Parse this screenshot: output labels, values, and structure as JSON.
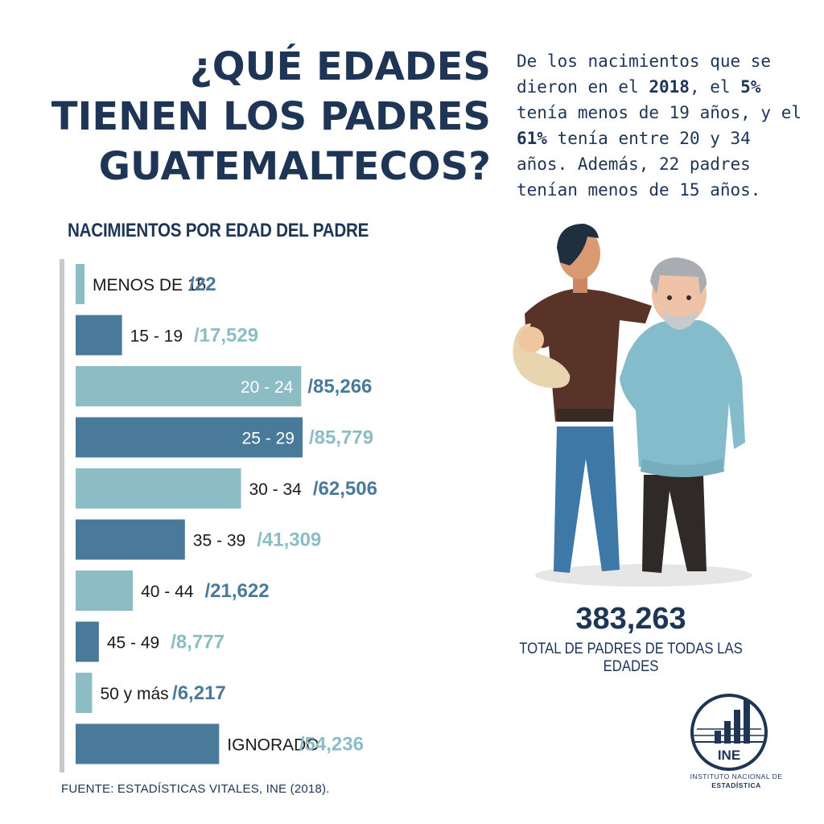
{
  "title": {
    "line1": "¿QUÉ EDADES",
    "line2": "TIENEN LOS PADRES",
    "line3": "GUATEMALTECOS?"
  },
  "intro": {
    "p1": "De los nacimientos que se dieron en el ",
    "year": "2018",
    "p2": ", el ",
    "pct1": "5%",
    "p3": " tenía menos de 19 años, y el ",
    "pct2": "61%",
    "p4": " tenía entre 20 y 34 años.  Además, 22 padres tenían menos de 15 años."
  },
  "chart_data": {
    "type": "bar",
    "orientation": "horizontal",
    "title": "NACIMIENTOS POR EDAD DEL PADRE",
    "categories": [
      "MENOS DE 15",
      "15 - 19",
      "20 - 24",
      "25 - 29",
      "30 - 34",
      "35 - 39",
      "40 - 44",
      "45 - 49",
      "50 y más",
      "IGNORADO"
    ],
    "values": [
      22,
      17529,
      85266,
      85779,
      62506,
      41309,
      21622,
      8777,
      6217,
      54236
    ],
    "value_labels": [
      "/22",
      "/17,529",
      "/85,266",
      "/85,779",
      "/62,506",
      "/41,309",
      "/21,622",
      "/8,777",
      "/6,217",
      "/54,236"
    ],
    "label_inside": [
      false,
      false,
      true,
      true,
      false,
      false,
      false,
      false,
      false,
      false
    ],
    "xlim": [
      0,
      85779
    ],
    "grid": false,
    "legend": "none"
  },
  "colors": {
    "dark_blue": "#4a7a9a",
    "light_blue": "#8cbcc4",
    "navy_text": "#1e3556",
    "axis": "#c8c8c8"
  },
  "total": {
    "value": "383,263",
    "label": "TOTAL DE PADRES DE TODAS LAS EDADES"
  },
  "source": "FUENTE: ESTADÍSTICAS VITALES,  INE (2018).",
  "logo": {
    "abbr": "INE",
    "line1": "INSTITUTO NACIONAL DE",
    "line2": "ESTADÍSTICA"
  }
}
